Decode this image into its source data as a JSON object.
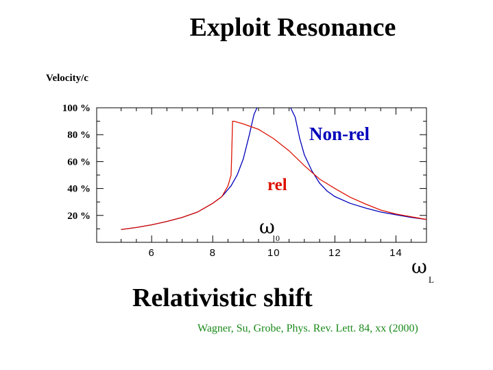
{
  "page": {
    "title": "Exploit Resonance",
    "subtitle": "Relativistic shift",
    "citation": "Wagner, Su, Grobe, Phys. Rev. Lett. 84, xx (2000)"
  },
  "chart_data": {
    "type": "line",
    "ylabel": "Velocity/c",
    "xlabel": "ω",
    "xlabel_sub": "L",
    "xlim": [
      4.2,
      15
    ],
    "ylim": [
      0,
      100
    ],
    "xticks": [
      6,
      8,
      10,
      12,
      14
    ],
    "yticks": [
      20,
      40,
      60,
      80,
      100
    ],
    "ytick_labels": [
      "20 %",
      "40 %",
      "60 %",
      "80 %",
      "100 %"
    ],
    "annotation": {
      "text": "ω",
      "sub": "0",
      "x": 10
    },
    "series": [
      {
        "name": "Non-rel",
        "color": "#0000bb",
        "x": [
          5.0,
          5.5,
          6.0,
          6.5,
          7.0,
          7.5,
          8.0,
          8.3,
          8.6,
          8.8,
          9.0,
          9.2,
          9.35,
          9.45,
          10.55,
          10.7,
          10.85,
          11.0,
          11.25,
          11.5,
          11.75,
          12.0,
          12.5,
          13.0,
          13.5,
          14.0,
          14.5,
          15.0
        ],
        "y": [
          9.5,
          11,
          13,
          15.5,
          18.5,
          22.5,
          29,
          34,
          42,
          50,
          62,
          80,
          95,
          100,
          100,
          93,
          77,
          65,
          53,
          44,
          38,
          34,
          29,
          25.5,
          22.5,
          20.5,
          18.5,
          17
        ]
      },
      {
        "name": "rel",
        "color": "#dd1100",
        "x": [
          5.0,
          5.5,
          6.0,
          6.5,
          7.0,
          7.5,
          8.0,
          8.3,
          8.5,
          8.6,
          8.62,
          8.65,
          8.7,
          9.0,
          9.5,
          10.0,
          10.5,
          11.0,
          11.5,
          12.0,
          12.5,
          13.0,
          13.5,
          14.0,
          14.5,
          15.0
        ],
        "y": [
          9.5,
          11,
          13,
          15.5,
          18.5,
          22.5,
          29,
          34,
          42,
          50,
          65,
          90,
          90,
          88,
          84,
          77,
          68,
          57,
          47,
          40,
          33.5,
          28.5,
          24,
          21,
          19,
          17
        ]
      }
    ]
  }
}
